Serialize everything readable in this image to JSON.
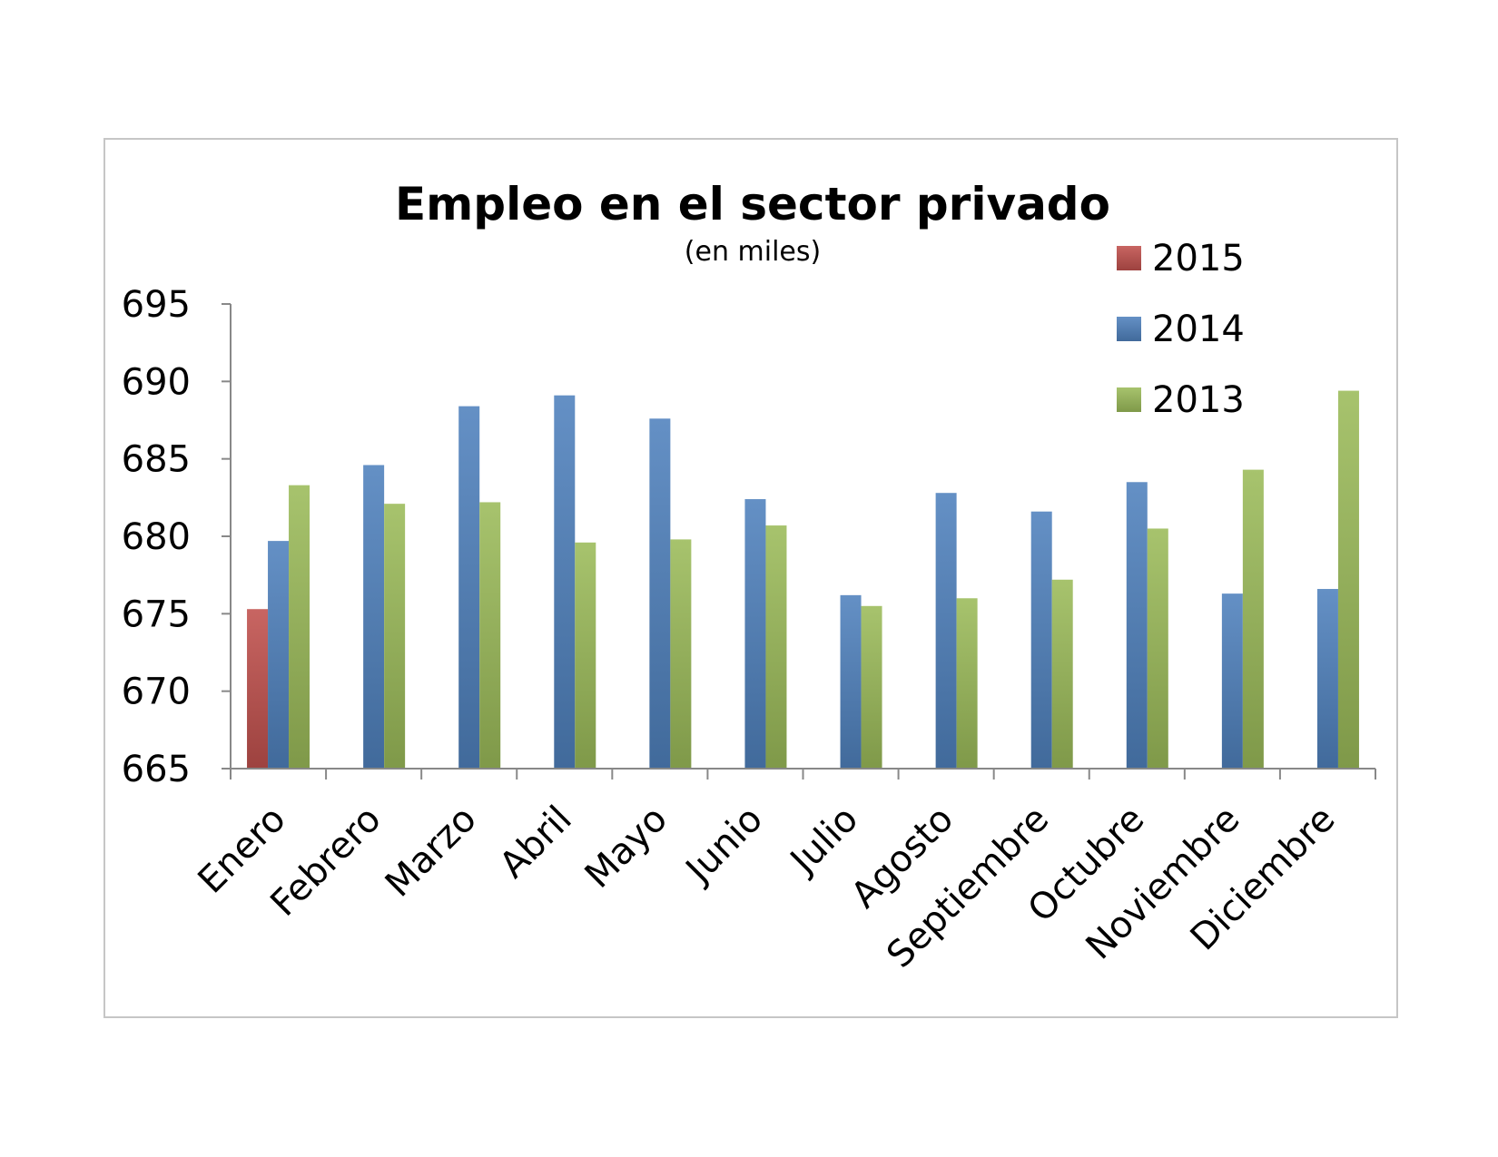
{
  "chart_data": {
    "type": "bar",
    "title": "Empleo en el sector privado",
    "subtitle": "(en miles)",
    "categories": [
      "Enero",
      "Febrero",
      "Marzo",
      "Abril",
      "Mayo",
      "Junio",
      "Julio",
      "Agosto",
      "Septiembre",
      "Octubre",
      "Noviembre",
      "Diciembre"
    ],
    "series": [
      {
        "name": "2015",
        "color": "#c0504d",
        "values": [
          675.3,
          null,
          null,
          null,
          null,
          null,
          null,
          null,
          null,
          null,
          null,
          null
        ]
      },
      {
        "name": "2014",
        "color": "#4f81bd",
        "values": [
          679.7,
          684.6,
          688.4,
          689.1,
          687.6,
          682.4,
          676.2,
          682.8,
          681.6,
          683.5,
          676.3,
          676.6
        ]
      },
      {
        "name": "2013",
        "color": "#9bbb59",
        "values": [
          683.3,
          682.1,
          682.2,
          679.6,
          679.8,
          680.7,
          675.5,
          676.0,
          677.2,
          680.5,
          684.3,
          689.4
        ]
      }
    ],
    "ylim": [
      665,
      695
    ],
    "yticks": [
      "665",
      "670",
      "675",
      "680",
      "685",
      "690",
      "695"
    ],
    "grid": false,
    "legend": "top-right"
  }
}
